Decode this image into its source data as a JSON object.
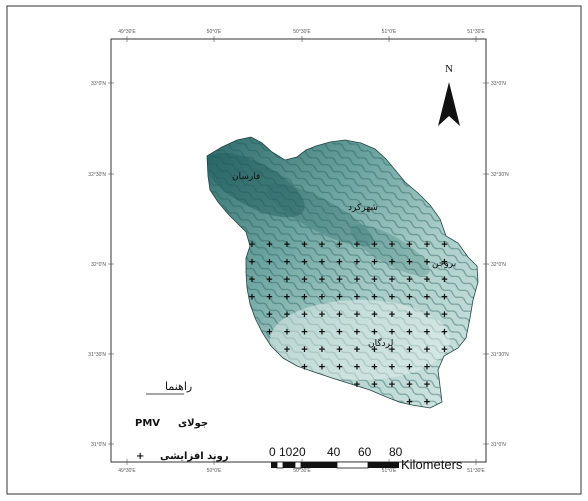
{
  "map": {
    "north_label": "N",
    "longitude_ticks": [
      "49°30'E",
      "50°0'E",
      "50°30'E",
      "51°0'E",
      "51°30'E"
    ],
    "latitude_ticks": [
      "33°0'N",
      "32°30'N",
      "32°0'N",
      "31°30'N",
      "31°0'N"
    ],
    "places": [
      {
        "name": "شهرکرد"
      },
      {
        "name": "فارسان"
      },
      {
        "name": "بروجن"
      },
      {
        "name": "لردگان"
      }
    ],
    "legend": {
      "title": "راهنما",
      "items": [
        {
          "label": "جولای",
          "value": "PMV"
        },
        {
          "label": "روند افزایشی",
          "symbol": "+"
        }
      ]
    },
    "scale_bar": {
      "ticks": [
        "0",
        "1020",
        "40",
        "60",
        "80"
      ],
      "unit": "Kilometers"
    },
    "colors": {
      "terrain_dark": "#2d6b6b",
      "terrain_light": "#b8d6d2",
      "frame": "#333333"
    }
  }
}
